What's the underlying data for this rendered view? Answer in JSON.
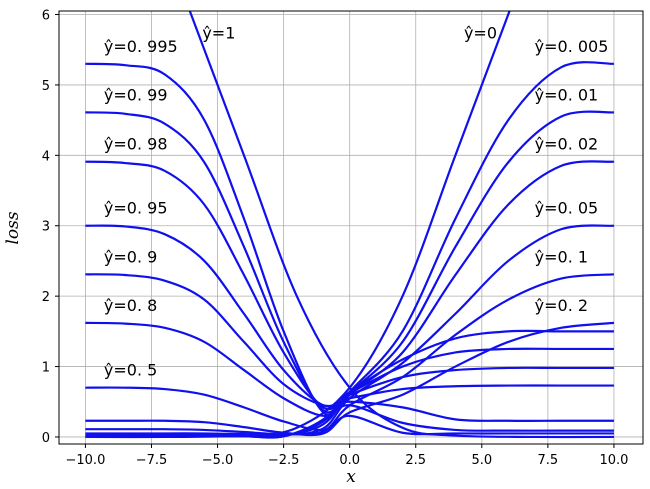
{
  "chart_data": {
    "type": "line",
    "title": "",
    "xlabel": "x",
    "ylabel": "loss",
    "xlim": [
      -11,
      11.1
    ],
    "ylim": [
      -0.1,
      6.05
    ],
    "grid": true,
    "color": "#1010ee",
    "x_ticks": [
      -10,
      -7.5,
      -5,
      -2.5,
      0,
      2.5,
      5,
      7.5,
      10
    ],
    "x_tick_labels": [
      "−10.0",
      "−7.5",
      "−5.0",
      "−2.5",
      "0.0",
      "2.5",
      "5.0",
      "7.5",
      "10.0"
    ],
    "y_ticks": [
      0,
      1,
      2,
      3,
      4,
      5,
      6
    ],
    "y_tick_labels": [
      "0",
      "1",
      "2",
      "3",
      "4",
      "5",
      "6"
    ],
    "x_range": [
      -10,
      10
    ],
    "series": [
      {
        "yhat": 0.995,
        "label": "ŷ=0. 995",
        "values": [
          [
            -10,
            5.3
          ],
          [
            -8.5,
            5.28
          ],
          [
            -7,
            5.15
          ],
          [
            -5.5,
            4.5
          ],
          [
            -4,
            3.1
          ],
          [
            -2.5,
            1.5
          ],
          [
            -1,
            0.35
          ],
          [
            0,
            0.64
          ],
          [
            2,
            1.1
          ],
          [
            4,
            1.4
          ],
          [
            6,
            1.5
          ],
          [
            8,
            1.5
          ],
          [
            10,
            1.5
          ]
        ]
      },
      {
        "yhat": 0.99,
        "label": "ŷ=0. 99",
        "values": [
          [
            -10,
            4.61
          ],
          [
            -8.5,
            4.59
          ],
          [
            -7,
            4.45
          ],
          [
            -5.5,
            3.9
          ],
          [
            -4,
            2.7
          ],
          [
            -2.5,
            1.35
          ],
          [
            -1,
            0.38
          ],
          [
            0,
            0.62
          ],
          [
            2,
            1.0
          ],
          [
            4,
            1.2
          ],
          [
            6,
            1.25
          ],
          [
            8,
            1.25
          ],
          [
            10,
            1.25
          ]
        ]
      },
      {
        "yhat": 0.98,
        "label": "ŷ=0. 98",
        "values": [
          [
            -10,
            3.91
          ],
          [
            -8.5,
            3.89
          ],
          [
            -7,
            3.78
          ],
          [
            -5.5,
            3.3
          ],
          [
            -4,
            2.3
          ],
          [
            -2.5,
            1.2
          ],
          [
            -1,
            0.42
          ],
          [
            0,
            0.6
          ],
          [
            2,
            0.85
          ],
          [
            4,
            0.95
          ],
          [
            6,
            0.98
          ],
          [
            8,
            0.98
          ],
          [
            10,
            0.98
          ]
        ]
      },
      {
        "yhat": 0.95,
        "label": "ŷ=0. 95",
        "values": [
          [
            -10,
            3.0
          ],
          [
            -8.5,
            2.99
          ],
          [
            -7,
            2.88
          ],
          [
            -5.5,
            2.5
          ],
          [
            -4,
            1.75
          ],
          [
            -2.5,
            0.95
          ],
          [
            -1,
            0.45
          ],
          [
            0,
            0.55
          ],
          [
            2,
            0.68
          ],
          [
            4,
            0.72
          ],
          [
            6,
            0.73
          ],
          [
            8,
            0.73
          ],
          [
            10,
            0.73
          ]
        ]
      },
      {
        "yhat": 0.9,
        "label": "ŷ=0. 9",
        "values": [
          [
            -10,
            2.31
          ],
          [
            -8.5,
            2.3
          ],
          [
            -7,
            2.22
          ],
          [
            -5.5,
            1.95
          ],
          [
            -4,
            1.35
          ],
          [
            -2.5,
            0.75
          ],
          [
            -1,
            0.45
          ],
          [
            0,
            0.5
          ],
          [
            2,
            0.42
          ],
          [
            4,
            0.25
          ],
          [
            6,
            0.23
          ],
          [
            8,
            0.23
          ],
          [
            10,
            0.23
          ]
        ]
      },
      {
        "yhat": 0.8,
        "label": "ŷ=0. 8",
        "values": [
          [
            -10,
            1.62
          ],
          [
            -8.5,
            1.61
          ],
          [
            -7,
            1.55
          ],
          [
            -5.5,
            1.35
          ],
          [
            -4,
            0.95
          ],
          [
            -2.5,
            0.55
          ],
          [
            -1,
            0.3
          ],
          [
            0,
            0.45
          ],
          [
            2,
            0.2
          ],
          [
            4,
            0.1
          ],
          [
            6,
            0.09
          ],
          [
            8,
            0.09
          ],
          [
            10,
            0.09
          ]
        ]
      },
      {
        "yhat": 0.5,
        "label": "ŷ=0. 5",
        "values": [
          [
            -10,
            0.7
          ],
          [
            -8.5,
            0.7
          ],
          [
            -7,
            0.68
          ],
          [
            -5.5,
            0.6
          ],
          [
            -4,
            0.42
          ],
          [
            -2.5,
            0.22
          ],
          [
            -1,
            0.1
          ],
          [
            0,
            0.3
          ],
          [
            2,
            0.06
          ],
          [
            4,
            0.05
          ],
          [
            6,
            0.05
          ],
          [
            8,
            0.05
          ],
          [
            10,
            0.05
          ]
        ]
      },
      {
        "yhat": 0.2,
        "label": "ŷ=0. 2",
        "values": [
          [
            -10,
            0.23
          ],
          [
            -8.5,
            0.23
          ],
          [
            -7,
            0.23
          ],
          [
            -5.5,
            0.21
          ],
          [
            -4,
            0.14
          ],
          [
            -2.5,
            0.06
          ],
          [
            -1,
            0.05
          ],
          [
            0,
            0.35
          ],
          [
            2,
            0.6
          ],
          [
            4,
            1.0
          ],
          [
            6,
            1.35
          ],
          [
            8,
            1.55
          ],
          [
            10,
            1.62
          ]
        ]
      },
      {
        "yhat": 0.1,
        "label": "ŷ=0. 1",
        "values": [
          [
            -10,
            0.11
          ],
          [
            -8.5,
            0.11
          ],
          [
            -7,
            0.11
          ],
          [
            -5.5,
            0.1
          ],
          [
            -4,
            0.07
          ],
          [
            -2.5,
            0.04
          ],
          [
            -1,
            0.08
          ],
          [
            0,
            0.45
          ],
          [
            2,
            0.85
          ],
          [
            4,
            1.45
          ],
          [
            6,
            1.95
          ],
          [
            8,
            2.25
          ],
          [
            10,
            2.31
          ]
        ]
      },
      {
        "yhat": 0.05,
        "label": "ŷ=0. 05",
        "values": [
          [
            -10,
            0.05
          ],
          [
            -8.5,
            0.05
          ],
          [
            -7,
            0.05
          ],
          [
            -5.5,
            0.05
          ],
          [
            -4,
            0.04
          ],
          [
            -2.5,
            0.03
          ],
          [
            -1,
            0.12
          ],
          [
            0,
            0.55
          ],
          [
            2,
            1.05
          ],
          [
            4,
            1.75
          ],
          [
            6,
            2.5
          ],
          [
            8,
            2.95
          ],
          [
            10,
            3.0
          ]
        ]
      },
      {
        "yhat": 0.02,
        "label": "ŷ=0. 02",
        "values": [
          [
            -10,
            0.02
          ],
          [
            -8.5,
            0.02
          ],
          [
            -7,
            0.02
          ],
          [
            -5.5,
            0.02
          ],
          [
            -4,
            0.02
          ],
          [
            -2.5,
            0.02
          ],
          [
            -1,
            0.18
          ],
          [
            0,
            0.6
          ],
          [
            2,
            1.2
          ],
          [
            4,
            2.3
          ],
          [
            6,
            3.3
          ],
          [
            8,
            3.85
          ],
          [
            10,
            3.91
          ]
        ]
      },
      {
        "yhat": 0.01,
        "label": "ŷ=0. 01",
        "values": [
          [
            -10,
            0.01
          ],
          [
            -8.5,
            0.01
          ],
          [
            -7,
            0.01
          ],
          [
            -5.5,
            0.01
          ],
          [
            -4,
            0.01
          ],
          [
            -2.5,
            0.01
          ],
          [
            -1,
            0.22
          ],
          [
            0,
            0.62
          ],
          [
            2,
            1.35
          ],
          [
            4,
            2.7
          ],
          [
            6,
            3.9
          ],
          [
            8,
            4.55
          ],
          [
            10,
            4.61
          ]
        ]
      },
      {
        "yhat": 0.005,
        "label": "ŷ=0. 005",
        "values": [
          [
            -10,
            0.01
          ],
          [
            -8.5,
            0.01
          ],
          [
            -7,
            0.01
          ],
          [
            -5.5,
            0.01
          ],
          [
            -4,
            0.01
          ],
          [
            -2.5,
            0.01
          ],
          [
            -1,
            0.25
          ],
          [
            0,
            0.64
          ],
          [
            2,
            1.5
          ],
          [
            4,
            3.1
          ],
          [
            6,
            4.5
          ],
          [
            8,
            5.25
          ],
          [
            10,
            5.3
          ]
        ]
      },
      {
        "yhat": 1,
        "label": "ŷ=1",
        "values": [
          [
            -10,
            10.0
          ],
          [
            -6.2,
            6.2
          ],
          [
            -4,
            4.0
          ],
          [
            -2,
            2.0
          ],
          [
            0,
            0.7
          ],
          [
            2,
            0.13
          ],
          [
            4,
            0.02
          ],
          [
            7,
            0.0
          ],
          [
            10,
            0.0
          ]
        ]
      },
      {
        "yhat": 0,
        "label": "ŷ=0",
        "values": [
          [
            -10,
            0.0
          ],
          [
            -7,
            0.0
          ],
          [
            -4,
            0.02
          ],
          [
            -2,
            0.13
          ],
          [
            0,
            0.7
          ],
          [
            2,
            2.0
          ],
          [
            4,
            4.0
          ],
          [
            6.2,
            6.2
          ],
          [
            10,
            10.0
          ]
        ]
      }
    ]
  }
}
